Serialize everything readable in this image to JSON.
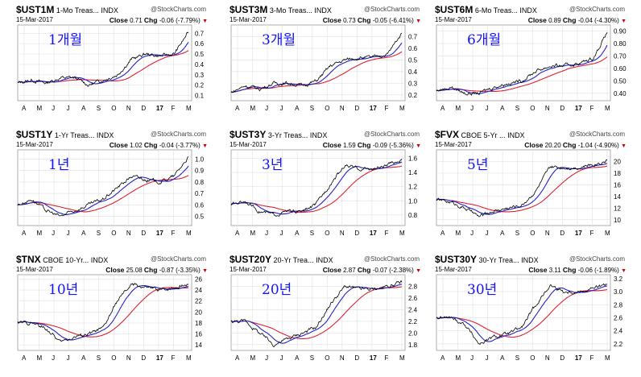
{
  "x_ticks": [
    "A",
    "M",
    "J",
    "J",
    "A",
    "S",
    "O",
    "N",
    "D",
    "17",
    "F",
    "M"
  ],
  "watermark": "@StockCharts.com",
  "close_label": "Close",
  "chg_label": "Chg",
  "colors": {
    "price": "#000000",
    "ma_fast": "#2222cc",
    "ma_slow": "#dd2233",
    "down": "#cc0000"
  },
  "chart_data": [
    {
      "type": "line",
      "symbol": "$UST1M",
      "desc": "1-Mo Treas...",
      "exch": "INDX",
      "date": "15-Mar-2017",
      "close": "0.71",
      "chg": "-0.06 (-7.79%)",
      "label": "1개월",
      "yticks": [
        "0.7",
        "0.6",
        "0.5",
        "0.4",
        "0.3",
        "0.2",
        "0.1"
      ],
      "tickvals": [
        0.7,
        0.6,
        0.5,
        0.4,
        0.3,
        0.2,
        0.1
      ],
      "ylim": [
        0.05,
        0.78
      ],
      "monthly": [
        0.22,
        0.25,
        0.22,
        0.27,
        0.27,
        0.2,
        0.25,
        0.3,
        0.45,
        0.5,
        0.48,
        0.5,
        0.71
      ]
    },
    {
      "type": "line",
      "symbol": "$UST3M",
      "desc": "3-Mo Treas...",
      "exch": "INDX",
      "date": "15-Mar-2017",
      "close": "0.73",
      "chg": "-0.05 (-6.41%)",
      "label": "3개월",
      "yticks": [
        "0.7",
        "0.6",
        "0.5",
        "0.4",
        "0.3",
        "0.2"
      ],
      "tickvals": [
        0.7,
        0.6,
        0.5,
        0.4,
        0.3,
        0.2
      ],
      "ylim": [
        0.15,
        0.8
      ],
      "monthly": [
        0.22,
        0.28,
        0.25,
        0.3,
        0.3,
        0.28,
        0.32,
        0.45,
        0.5,
        0.52,
        0.52,
        0.55,
        0.73
      ]
    },
    {
      "type": "line",
      "symbol": "$UST6M",
      "desc": "6-Mo Treas...",
      "exch": "INDX",
      "date": "15-Mar-2017",
      "close": "0.89",
      "chg": "-0.04 (-4.30%)",
      "label": "6개월",
      "yticks": [
        "0.90",
        "0.80",
        "0.70",
        "0.60",
        "0.50",
        "0.40"
      ],
      "tickvals": [
        0.9,
        0.8,
        0.7,
        0.6,
        0.5,
        0.4
      ],
      "ylim": [
        0.34,
        0.95
      ],
      "monthly": [
        0.42,
        0.45,
        0.4,
        0.4,
        0.45,
        0.48,
        0.5,
        0.58,
        0.62,
        0.62,
        0.64,
        0.68,
        0.89
      ]
    },
    {
      "type": "line",
      "symbol": "$UST1Y",
      "desc": "1-Yr Treas...",
      "exch": "INDX",
      "date": "15-Mar-2017",
      "close": "1.02",
      "chg": "-0.04 (-3.77%)",
      "label": "1년",
      "yticks": [
        "1.0",
        "0.9",
        "0.8",
        "0.7",
        "0.6",
        "0.5"
      ],
      "tickvals": [
        1.0,
        0.9,
        0.8,
        0.7,
        0.6,
        0.5
      ],
      "ylim": [
        0.42,
        1.08
      ],
      "monthly": [
        0.6,
        0.65,
        0.55,
        0.5,
        0.55,
        0.6,
        0.65,
        0.75,
        0.85,
        0.82,
        0.8,
        0.85,
        1.02
      ]
    },
    {
      "type": "line",
      "symbol": "$UST3Y",
      "desc": "3-Yr Treas...",
      "exch": "INDX",
      "date": "15-Mar-2017",
      "close": "1.59",
      "chg": "-0.09 (-5.36%)",
      "label": "3년",
      "yticks": [
        "1.6",
        "1.4",
        "1.2",
        "1.0",
        "0.8"
      ],
      "tickvals": [
        1.6,
        1.4,
        1.2,
        1.0,
        0.8
      ],
      "ylim": [
        0.65,
        1.72
      ],
      "monthly": [
        0.95,
        1.0,
        0.85,
        0.8,
        0.85,
        0.85,
        0.95,
        1.25,
        1.5,
        1.45,
        1.45,
        1.5,
        1.59
      ]
    },
    {
      "type": "line",
      "symbol": "$FVX",
      "desc": "CBOE 5-Yr ...",
      "exch": "INDX",
      "date": "15-Mar-2017",
      "close": "20.20",
      "chg": "-1.04 (-4.90%)",
      "label": "5년",
      "yticks": [
        "20",
        "18",
        "16",
        "14",
        "12",
        "10"
      ],
      "tickvals": [
        20,
        18,
        16,
        14,
        12,
        10
      ],
      "ylim": [
        9,
        22
      ],
      "monthly": [
        13.5,
        13,
        12,
        10.5,
        11.5,
        12,
        12.5,
        15,
        19,
        19,
        19,
        19.5,
        20.2
      ]
    },
    {
      "type": "line",
      "symbol": "$TNX",
      "desc": "CBOE 10-Yr...",
      "exch": "INDX",
      "date": "15-Mar-2017",
      "close": "25.08",
      "chg": "-0.87 (-3.35%)",
      "label": "10년",
      "yticks": [
        "26",
        "24",
        "22",
        "20",
        "18",
        "16",
        "14"
      ],
      "tickvals": [
        26,
        24,
        22,
        20,
        18,
        16,
        14
      ],
      "ylim": [
        13,
        26.8
      ],
      "monthly": [
        18,
        18,
        17,
        14.5,
        15.5,
        16,
        17,
        22,
        25,
        24.5,
        24,
        24.5,
        25.08
      ]
    },
    {
      "type": "line",
      "symbol": "$UST20Y",
      "desc": "20-Yr Trea...",
      "exch": "INDX",
      "date": "15-Mar-2017",
      "close": "2.87",
      "chg": "-0.07 (-2.38%)",
      "label": "20년",
      "yticks": [
        "2.8",
        "2.6",
        "2.4",
        "2.2",
        "2.0",
        "1.8"
      ],
      "tickvals": [
        2.8,
        2.6,
        2.4,
        2.2,
        2.0,
        1.8
      ],
      "ylim": [
        1.7,
        3.0
      ],
      "monthly": [
        2.2,
        2.2,
        2.0,
        1.8,
        1.9,
        2.0,
        2.1,
        2.5,
        2.8,
        2.75,
        2.75,
        2.8,
        2.87
      ]
    },
    {
      "type": "line",
      "symbol": "$UST30Y",
      "desc": "30-Yr Trea...",
      "exch": "INDX",
      "date": "15-Mar-2017",
      "close": "3.11",
      "chg": "-0.06 (-1.89%)",
      "label": "30년",
      "yticks": [
        "3.2",
        "3.0",
        "2.8",
        "2.6",
        "2.4",
        "2.2"
      ],
      "tickvals": [
        3.2,
        3.0,
        2.8,
        2.6,
        2.4,
        2.2
      ],
      "ylim": [
        2.1,
        3.26
      ],
      "monthly": [
        2.6,
        2.6,
        2.5,
        2.2,
        2.3,
        2.35,
        2.45,
        2.8,
        3.1,
        3.0,
        3.0,
        3.05,
        3.11
      ]
    }
  ]
}
